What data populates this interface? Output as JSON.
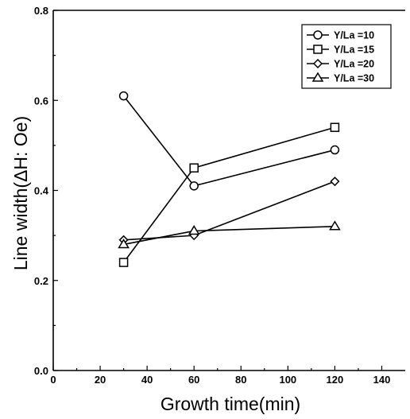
{
  "chart_data": {
    "type": "line",
    "xlabel": "Growth time(min)",
    "ylabel": "Line width(ΔH: Oe)",
    "xlim": [
      0,
      150
    ],
    "ylim": [
      0.0,
      0.8
    ],
    "xticks": [
      0,
      20,
      40,
      60,
      80,
      100,
      120,
      140
    ],
    "yticks": [
      0.0,
      0.2,
      0.4,
      0.6,
      0.8
    ],
    "xtick_labels": [
      "0",
      "20",
      "40",
      "60",
      "80",
      "100",
      "120",
      "140"
    ],
    "ytick_labels": [
      "0.0",
      "0.2",
      "0.4",
      "0.6",
      "0.8"
    ],
    "grid": false,
    "legend_position": "top-right",
    "series": [
      {
        "name": "Y/La =10",
        "marker": "circle",
        "x": [
          30,
          60,
          120
        ],
        "values": [
          0.61,
          0.41,
          0.49
        ]
      },
      {
        "name": "Y/La =15",
        "marker": "square",
        "x": [
          30,
          60,
          120
        ],
        "values": [
          0.24,
          0.45,
          0.54
        ]
      },
      {
        "name": "Y/La =20",
        "marker": "diamond",
        "x": [
          30,
          60,
          120
        ],
        "values": [
          0.29,
          0.3,
          0.42
        ]
      },
      {
        "name": "Y/La =30",
        "marker": "triangle",
        "x": [
          30,
          60,
          120
        ],
        "values": [
          0.28,
          0.31,
          0.32
        ]
      }
    ]
  }
}
